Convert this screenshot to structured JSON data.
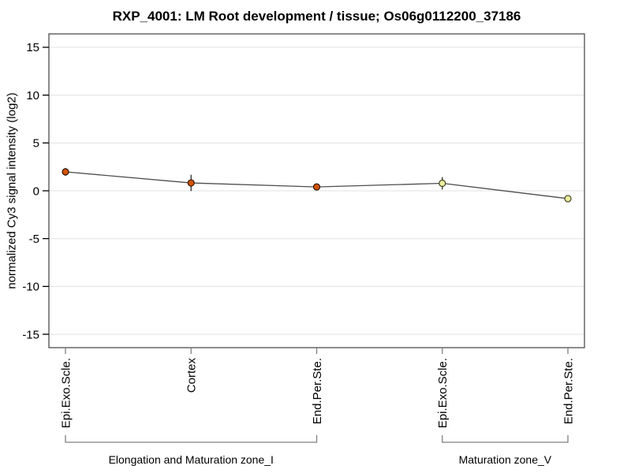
{
  "chart_data": {
    "type": "line",
    "title": "RXP_4001: LM Root development / tissue; Os06g0112200_37186",
    "ylabel": "normalized Cy3 signal intensity (log2)",
    "xlabel": "",
    "ylim": [
      -16.4,
      16.4
    ],
    "yticks": [
      15,
      10,
      5,
      0,
      -5,
      -10,
      -15
    ],
    "grid": "horizontal",
    "legend": "none",
    "categories": [
      "Epi.Exo.Scle.",
      "Cortex",
      "End.Per.Ste.",
      "Epi.Exo.Scle.",
      "End.Per.Ste."
    ],
    "values": [
      1.98,
      0.82,
      0.4,
      0.78,
      -0.82
    ],
    "errors": [
      0.4,
      0.85,
      0.3,
      0.65,
      0.15
    ],
    "marker_fills": [
      "#d45500",
      "#d45500",
      "#d45500",
      "#eeeea2",
      "#eeeea2"
    ],
    "marker_strokes": [
      "#301400",
      "#301400",
      "#301400",
      "#403f20",
      "#403f20"
    ],
    "groups": [
      {
        "label": "Elongation and Maturation zone_I",
        "start": 0,
        "end": 2
      },
      {
        "label": "Maturation zone_V",
        "start": 3,
        "end": 4
      }
    ],
    "colors": {
      "line": "#4d4d4d",
      "grid": "#e6e6e6",
      "frame": "#4d4d4d",
      "y_tick": "#000000",
      "x_tick": "#808080",
      "bracket": "#808080",
      "error_bar": "#1a1a1a",
      "text": "#000000"
    }
  }
}
